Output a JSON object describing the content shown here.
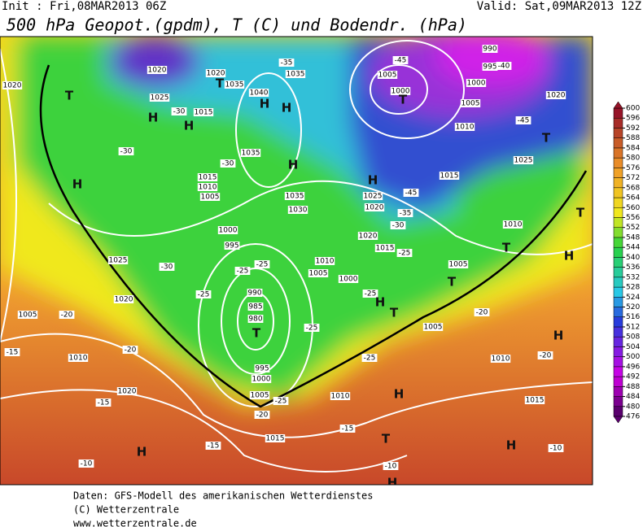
{
  "header": {
    "init": "Init : Fri,08MAR2013 06Z",
    "valid": "Valid: Sat,09MAR2013 12Z",
    "title": "500 hPa Geopot.(gpdm), T (C) und Bodendr. (hPa)"
  },
  "legend": {
    "ticks": [
      476,
      480,
      484,
      488,
      492,
      496,
      500,
      504,
      508,
      512,
      516,
      520,
      524,
      528,
      532,
      536,
      540,
      544,
      548,
      552,
      556,
      560,
      564,
      568,
      572,
      576,
      580,
      584,
      588,
      592,
      596,
      600
    ]
  },
  "map": {
    "labels": [
      "1020",
      "1025",
      "1020",
      "T",
      "1035",
      "1040",
      "1035",
      "-35",
      "H",
      "H",
      "1015",
      "H",
      "H",
      "-30",
      "T",
      "1020",
      "-30",
      "H",
      "1035",
      "-30",
      "H",
      "1015",
      "1010",
      "1005",
      "1035",
      "1030",
      "1000",
      "995",
      "1025",
      "-30",
      "-25",
      "-25",
      "-25",
      "990",
      "985",
      "980",
      "T",
      "-25",
      "1020",
      "1005",
      "-20",
      "-15",
      "1010",
      "-20",
      "995",
      "1000",
      "1005",
      "-25",
      "-20",
      "1015",
      "1020",
      "-15",
      "H",
      "-15",
      "-10",
      "-25",
      "1010",
      "-15",
      "H",
      "T",
      "-10",
      "H",
      "990",
      "995",
      "-45",
      "-40",
      "1005",
      "1000",
      "1000",
      "T",
      "1005",
      "1020",
      "1010",
      "-45",
      "T",
      "1025",
      "1015",
      "H",
      "1025",
      "1020",
      "-45",
      "-35",
      "-30",
      "1010",
      "T",
      "-25",
      "1015",
      "1020",
      "1010",
      "1005",
      "1000",
      "1005",
      "T",
      "T",
      "H",
      "-25",
      "H",
      "T",
      "1005",
      "-20",
      "H",
      "1010",
      "-20",
      "1015",
      "H",
      "-10"
    ]
  },
  "footer": {
    "lines": [
      "Daten: GFS-Modell des amerikanischen Wetterdienstes",
      "(C) Wetterzentrale",
      "www.wetterzentrale.de"
    ]
  }
}
